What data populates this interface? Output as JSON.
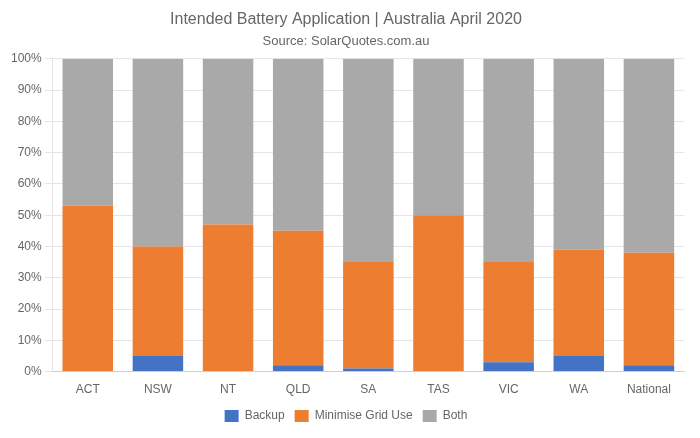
{
  "chart_data": {
    "type": "bar",
    "stacked": true,
    "title": "Intended Battery Application | Australia April 2020",
    "subtitle": "Source: SolarQuotes.com.au",
    "categories": [
      "ACT",
      "NSW",
      "NT",
      "QLD",
      "SA",
      "TAS",
      "VIC",
      "WA",
      "National"
    ],
    "series": [
      {
        "name": "Backup",
        "color": "#4472C4",
        "values": [
          0,
          5,
          0,
          2,
          1,
          0,
          3,
          5,
          2
        ]
      },
      {
        "name": "Minimise Grid Use",
        "color": "#ED7D31",
        "values": [
          53,
          35,
          47,
          43,
          34,
          50,
          32,
          34,
          36
        ]
      },
      {
        "name": "Both",
        "color": "#A9A9A9",
        "values": [
          47,
          60,
          53,
          55,
          65,
          50,
          65,
          61,
          62
        ]
      }
    ],
    "ylim": [
      0,
      100
    ],
    "yticks": [
      {
        "value": 0,
        "label": "0%"
      },
      {
        "value": 10,
        "label": "10%"
      },
      {
        "value": 20,
        "label": "20%"
      },
      {
        "value": 30,
        "label": "30%"
      },
      {
        "value": 40,
        "label": "40%"
      },
      {
        "value": 50,
        "label": "50%"
      },
      {
        "value": 60,
        "label": "60%"
      },
      {
        "value": 70,
        "label": "70%"
      },
      {
        "value": 80,
        "label": "80%"
      },
      {
        "value": 90,
        "label": "90%"
      },
      {
        "value": 100,
        "label": "100%"
      }
    ],
    "grid": true,
    "legend": "bottom"
  }
}
